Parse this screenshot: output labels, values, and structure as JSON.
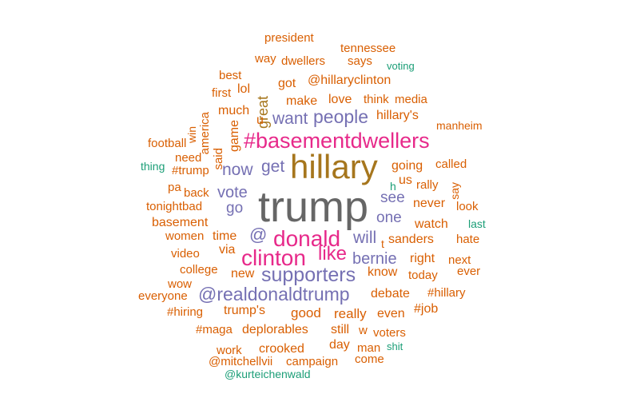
{
  "colors": {
    "orange": "#D95F02",
    "teal": "#1B9E77",
    "purple": "#7570B3",
    "pink": "#E7298A",
    "olive": "#A6761D",
    "gray": "#666666"
  },
  "words": [
    {
      "text": "trump",
      "color": "gray",
      "emphasis": "largest"
    },
    {
      "text": "hillary",
      "color": "olive",
      "emphasis": "very-large"
    },
    {
      "text": "donald",
      "color": "pink"
    },
    {
      "text": "clinton",
      "color": "pink"
    },
    {
      "text": "#basementdwellers",
      "color": "pink"
    },
    {
      "text": "supporters",
      "color": "purple"
    },
    {
      "text": "@realdonaldtrump",
      "color": "purple"
    },
    {
      "text": "people",
      "color": "purple"
    },
    {
      "text": "like",
      "color": "pink"
    },
    {
      "text": "bernie",
      "color": "purple"
    },
    {
      "text": "will",
      "color": "purple"
    },
    {
      "text": "now",
      "color": "purple"
    },
    {
      "text": "get",
      "color": "purple"
    },
    {
      "text": "want",
      "color": "purple"
    },
    {
      "text": "vote",
      "color": "purple"
    },
    {
      "text": "see",
      "color": "purple"
    },
    {
      "text": "one",
      "color": "purple"
    },
    {
      "text": "@",
      "color": "purple"
    },
    {
      "text": "go",
      "color": "purple"
    },
    {
      "text": "great",
      "color": "olive"
    },
    {
      "text": "president",
      "color": "orange"
    },
    {
      "text": "tennessee",
      "color": "orange"
    },
    {
      "text": "way",
      "color": "orange"
    },
    {
      "text": "dwellers",
      "color": "orange"
    },
    {
      "text": "says",
      "color": "orange"
    },
    {
      "text": "voting",
      "color": "teal"
    },
    {
      "text": "best",
      "color": "orange"
    },
    {
      "text": "got",
      "color": "orange"
    },
    {
      "text": "@hillaryclinton",
      "color": "orange"
    },
    {
      "text": "lol",
      "color": "orange"
    },
    {
      "text": "first",
      "color": "orange"
    },
    {
      "text": "make",
      "color": "orange"
    },
    {
      "text": "love",
      "color": "orange"
    },
    {
      "text": "think",
      "color": "orange"
    },
    {
      "text": "media",
      "color": "orange"
    },
    {
      "text": "much",
      "color": "orange"
    },
    {
      "text": "u",
      "color": "orange"
    },
    {
      "text": "hillary's",
      "color": "orange"
    },
    {
      "text": "win",
      "color": "orange"
    },
    {
      "text": "america",
      "color": "orange"
    },
    {
      "text": "game",
      "color": "orange"
    },
    {
      "text": "manheim",
      "color": "orange"
    },
    {
      "text": "football",
      "color": "orange"
    },
    {
      "text": "said",
      "color": "orange"
    },
    {
      "text": "need",
      "color": "orange"
    },
    {
      "text": "going",
      "color": "orange"
    },
    {
      "text": "called",
      "color": "orange"
    },
    {
      "text": "thing",
      "color": "teal"
    },
    {
      "text": "#trump",
      "color": "orange"
    },
    {
      "text": "h",
      "color": "teal"
    },
    {
      "text": "us",
      "color": "orange"
    },
    {
      "text": "rally",
      "color": "orange"
    },
    {
      "text": "say",
      "color": "orange"
    },
    {
      "text": "pa",
      "color": "orange"
    },
    {
      "text": "back",
      "color": "orange"
    },
    {
      "text": "never",
      "color": "orange"
    },
    {
      "text": "look",
      "color": "orange"
    },
    {
      "text": "tonightbad",
      "color": "orange"
    },
    {
      "text": "basement",
      "color": "orange"
    },
    {
      "text": "watch",
      "color": "orange"
    },
    {
      "text": "last",
      "color": "teal"
    },
    {
      "text": "women",
      "color": "orange"
    },
    {
      "text": "time",
      "color": "orange"
    },
    {
      "text": "t",
      "color": "orange"
    },
    {
      "text": "sanders",
      "color": "orange"
    },
    {
      "text": "hate",
      "color": "orange"
    },
    {
      "text": "video",
      "color": "orange"
    },
    {
      "text": "via",
      "color": "orange"
    },
    {
      "text": "right",
      "color": "orange"
    },
    {
      "text": "next",
      "color": "orange"
    },
    {
      "text": "college",
      "color": "orange"
    },
    {
      "text": "new",
      "color": "orange"
    },
    {
      "text": "know",
      "color": "orange"
    },
    {
      "text": "today",
      "color": "orange"
    },
    {
      "text": "ever",
      "color": "orange"
    },
    {
      "text": "wow",
      "color": "orange"
    },
    {
      "text": "debate",
      "color": "orange"
    },
    {
      "text": "#hillary",
      "color": "orange"
    },
    {
      "text": "everyone",
      "color": "orange"
    },
    {
      "text": "#hiring",
      "color": "orange"
    },
    {
      "text": "trump's",
      "color": "orange"
    },
    {
      "text": "good",
      "color": "orange"
    },
    {
      "text": "really",
      "color": "orange"
    },
    {
      "text": "even",
      "color": "orange"
    },
    {
      "text": "#job",
      "color": "orange"
    },
    {
      "text": "#maga",
      "color": "orange"
    },
    {
      "text": "deplorables",
      "color": "orange"
    },
    {
      "text": "still",
      "color": "orange"
    },
    {
      "text": "w",
      "color": "orange"
    },
    {
      "text": "voters",
      "color": "orange"
    },
    {
      "text": "work",
      "color": "orange"
    },
    {
      "text": "crooked",
      "color": "orange"
    },
    {
      "text": "day",
      "color": "orange"
    },
    {
      "text": "man",
      "color": "orange"
    },
    {
      "text": "shit",
      "color": "teal"
    },
    {
      "text": "@mitchellvii",
      "color": "orange"
    },
    {
      "text": "campaign",
      "color": "orange"
    },
    {
      "text": "come",
      "color": "orange"
    },
    {
      "text": "@kurteichenwald",
      "color": "teal"
    }
  ]
}
